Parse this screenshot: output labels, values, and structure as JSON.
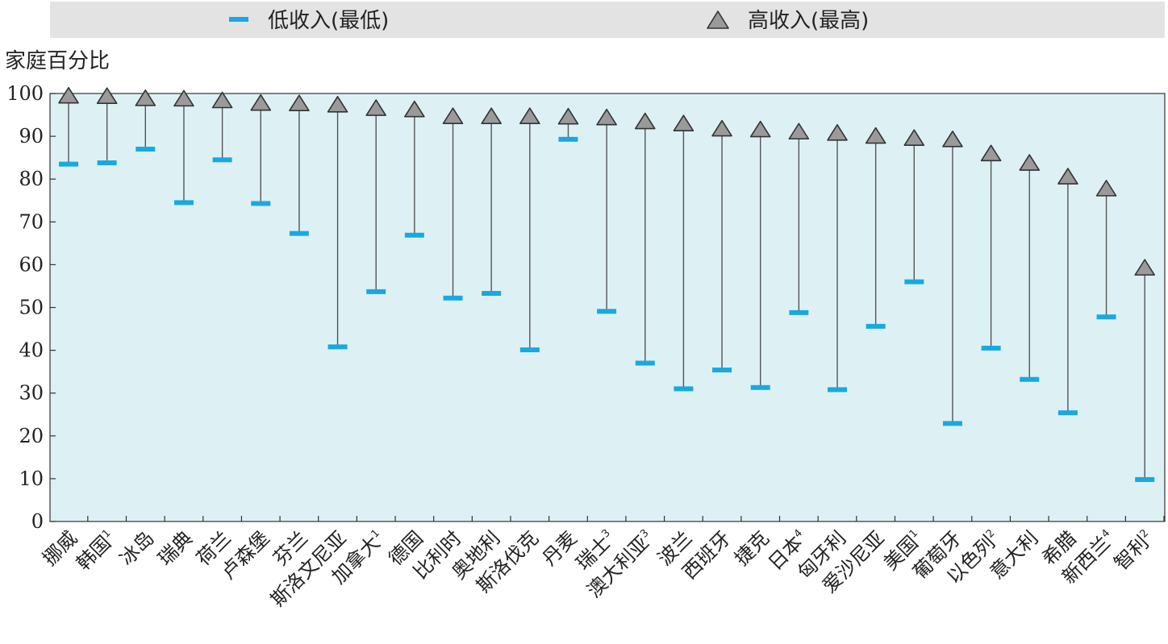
{
  "legend": {
    "low_label": "低收入(最低)",
    "high_label": "高收入(最高)"
  },
  "colors": {
    "low": "#1aa8e0",
    "high_fill": "#9a9a9a",
    "plot_background": "#ddf1f5",
    "legend_background": "#e3e3e3"
  },
  "chart_data": {
    "type": "range",
    "ylabel": "家庭百分比",
    "ylim": [
      0,
      100
    ],
    "yticks": [
      0,
      10,
      20,
      30,
      40,
      50,
      60,
      70,
      80,
      90,
      100
    ],
    "legend_position": "top",
    "categories": [
      {
        "name": "挪威",
        "sup": ""
      },
      {
        "name": "韩国",
        "sup": "1"
      },
      {
        "name": "冰岛",
        "sup": ""
      },
      {
        "name": "瑞典",
        "sup": ""
      },
      {
        "name": "荷兰",
        "sup": ""
      },
      {
        "name": "卢森堡",
        "sup": ""
      },
      {
        "name": "芬兰",
        "sup": ""
      },
      {
        "name": "斯洛文尼亚",
        "sup": ""
      },
      {
        "name": "加拿大",
        "sup": "1"
      },
      {
        "name": "德国",
        "sup": ""
      },
      {
        "name": "比利时",
        "sup": ""
      },
      {
        "name": "奥地利",
        "sup": ""
      },
      {
        "name": "斯洛伐克",
        "sup": ""
      },
      {
        "name": "丹麦",
        "sup": ""
      },
      {
        "name": "瑞士",
        "sup": "3"
      },
      {
        "name": "澳大利亚",
        "sup": "3"
      },
      {
        "name": "波兰",
        "sup": ""
      },
      {
        "name": "西班牙",
        "sup": ""
      },
      {
        "name": "捷克",
        "sup": ""
      },
      {
        "name": "日本",
        "sup": "4"
      },
      {
        "name": "匈牙利",
        "sup": ""
      },
      {
        "name": "爱沙尼亚",
        "sup": ""
      },
      {
        "name": "美国",
        "sup": "1"
      },
      {
        "name": "葡萄牙",
        "sup": ""
      },
      {
        "name": "以色列",
        "sup": "2"
      },
      {
        "name": "意大利",
        "sup": ""
      },
      {
        "name": "希腊",
        "sup": ""
      },
      {
        "name": "新西兰",
        "sup": "4"
      },
      {
        "name": "智利",
        "sup": "2"
      }
    ],
    "series": [
      {
        "name": "低收入(最低)",
        "marker": "dash",
        "values": [
          83.5,
          83.8,
          87,
          74.5,
          84.5,
          74.3,
          67.3,
          40.8,
          53.7,
          66.9,
          52.2,
          53.3,
          40.1,
          89.3,
          49.1,
          37,
          31,
          35.4,
          31.3,
          48.8,
          30.8,
          45.6,
          56,
          22.9,
          40.5,
          33.2,
          25.4,
          47.8,
          9.8
        ]
      },
      {
        "name": "高收入(最高)",
        "marker": "triangle",
        "values": [
          99.5,
          99.4,
          98.9,
          98.8,
          98.4,
          97.8,
          97.7,
          97.4,
          96.6,
          96.3,
          94.7,
          94.7,
          94.7,
          94.6,
          94.4,
          93.5,
          93,
          91.8,
          91.6,
          91.1,
          90.8,
          90.1,
          89.6,
          89.3,
          86,
          83.8,
          80.6,
          77.8,
          59.3
        ]
      }
    ]
  }
}
